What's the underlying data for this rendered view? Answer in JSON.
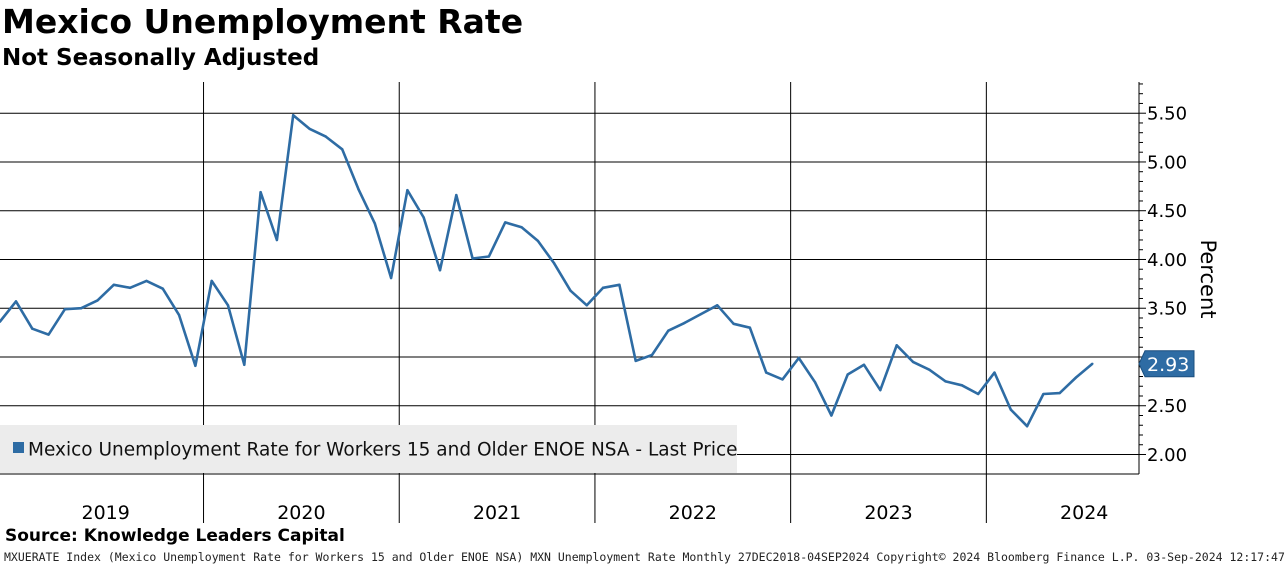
{
  "chart_data": {
    "type": "line",
    "title": "Mexico Unemployment Rate",
    "subtitle": "Not Seasonally Adjusted",
    "ylabel": "Percent",
    "ylim": [
      1.8,
      5.82
    ],
    "yticks": [
      2.0,
      2.5,
      3.0,
      3.5,
      4.0,
      4.5,
      5.0,
      5.5
    ],
    "ytick_labels": [
      "2.00",
      "2.50",
      "3.00",
      "3.50",
      "4.00",
      "4.50",
      "5.00",
      "5.50"
    ],
    "xlim": [
      2018.96,
      2024.78
    ],
    "year_labels": [
      {
        "label": "2019",
        "year": 2019
      },
      {
        "label": "2020",
        "year": 2020
      },
      {
        "label": "2021",
        "year": 2021
      },
      {
        "label": "2022",
        "year": 2022
      },
      {
        "label": "2023",
        "year": 2023
      },
      {
        "label": "2024",
        "year": 2024
      }
    ],
    "grid": true,
    "series": [
      {
        "name": "Mexico Unemployment Rate for Workers 15 and Older ENOE NSA - Last Price",
        "color": "#2e6ca4",
        "start": "2018-12",
        "frequency": "monthly",
        "values": [
          3.36,
          3.57,
          3.29,
          3.23,
          3.49,
          3.5,
          3.58,
          3.74,
          3.71,
          3.78,
          3.7,
          3.43,
          2.91,
          3.78,
          3.53,
          2.92,
          4.69,
          4.2,
          5.48,
          5.34,
          5.26,
          5.13,
          4.72,
          4.37,
          3.81,
          4.71,
          4.43,
          3.89,
          4.66,
          4.01,
          4.03,
          4.38,
          4.33,
          4.19,
          3.96,
          3.68,
          3.53,
          3.71,
          3.74,
          2.96,
          3.02,
          3.27,
          3.35,
          3.44,
          3.53,
          3.34,
          3.3,
          2.84,
          2.77,
          2.99,
          2.74,
          2.4,
          2.82,
          2.92,
          2.66,
          3.12,
          2.95,
          2.87,
          2.75,
          2.71,
          2.62,
          2.84,
          2.46,
          2.29,
          2.62,
          2.63,
          2.79,
          2.93
        ]
      }
    ],
    "legend": {
      "label": "Mexico Unemployment Rate for Workers 15 and Older ENOE NSA - Last Price",
      "position": "bottom-left"
    },
    "last_value": {
      "label": "2.93",
      "value": 2.93,
      "color": "#2e6ca4"
    }
  },
  "source": "Source: Knowledge Leaders Capital",
  "footer": "MXUERATE Index (Mexico Unemployment Rate for Workers 15 and Older ENOE NSA) MXN Unemployment Rate  Monthly 27DEC2018-04SEP2024 Copyright© 2024 Bloomberg Finance L.P. 03-Sep-2024 12:17:47"
}
